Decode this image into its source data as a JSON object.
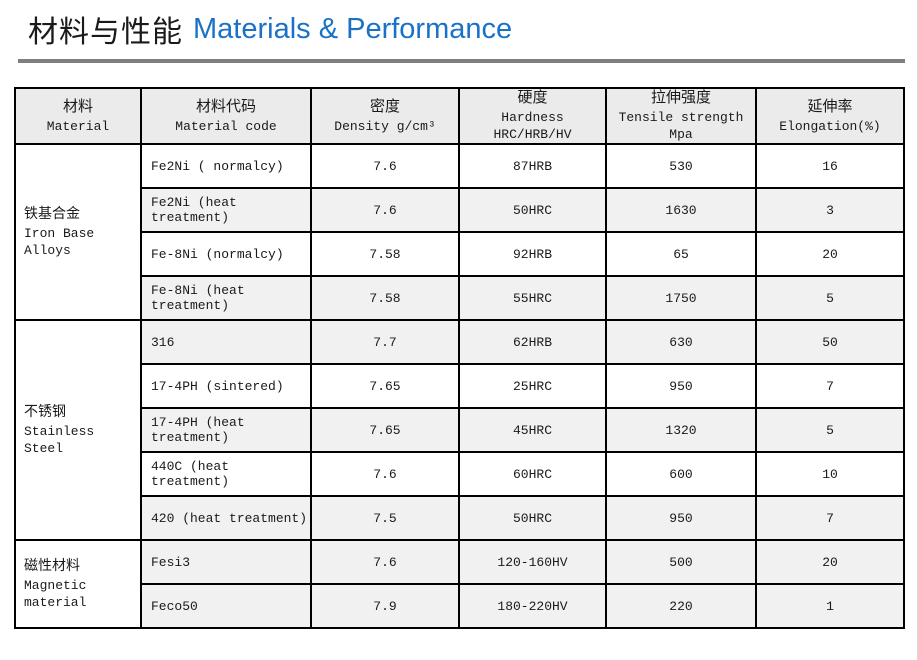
{
  "title": {
    "zh": "材料与性能",
    "en": "Materials & Performance"
  },
  "colors": {
    "title_en_blue": "#1a72c8",
    "divider_gray": "#7f7f7f",
    "header_bg": "#ebebeb",
    "shaded_row_bg": "#f1f1f1",
    "border_black": "#000000"
  },
  "table": {
    "headers": [
      {
        "zh": "材料",
        "en": "Material"
      },
      {
        "zh": "材料代码",
        "en": "Material code"
      },
      {
        "zh": "密度",
        "en": "Density g/cm³"
      },
      {
        "zh": "硬度",
        "en": "Hardness HRC/HRB/HV"
      },
      {
        "zh": "拉伸强度",
        "en": "Tensile strength Mpa"
      },
      {
        "zh": "延伸率",
        "en": "Elongation(%)"
      }
    ],
    "groups": [
      {
        "zh": "铁基合金",
        "en": "Iron Base Alloys",
        "rowspan": 4
      },
      {
        "zh": "不锈钢",
        "en": "Stainless Steel",
        "rowspan": 5
      },
      {
        "zh": "磁性材料",
        "en": "Magnetic material",
        "rowspan": 2
      }
    ],
    "rows": [
      {
        "code": "Fe2Ni ( normalcy)",
        "density": "7.6",
        "hardness": "87HRB",
        "tensile": "530",
        "elongation": "16"
      },
      {
        "code": "Fe2Ni (heat treatment)",
        "density": "7.6",
        "hardness": "50HRC",
        "tensile": "1630",
        "elongation": "3"
      },
      {
        "code": "Fe-8Ni (normalcy)",
        "density": "7.58",
        "hardness": "92HRB",
        "tensile": "65",
        "elongation": "20"
      },
      {
        "code": "Fe-8Ni (heat treatment)",
        "density": "7.58",
        "hardness": "55HRC",
        "tensile": "1750",
        "elongation": "5"
      },
      {
        "code": "316",
        "density": "7.7",
        "hardness": "62HRB",
        "tensile": "630",
        "elongation": "50"
      },
      {
        "code": "17-4PH (sintered)",
        "density": "7.65",
        "hardness": "25HRC",
        "tensile": "950",
        "elongation": "7"
      },
      {
        "code": "17-4PH (heat treatment)",
        "density": "7.65",
        "hardness": "45HRC",
        "tensile": "1320",
        "elongation": "5"
      },
      {
        "code": "440C (heat treatment)",
        "density": "7.6",
        "hardness": "60HRC",
        "tensile": "600",
        "elongation": "10"
      },
      {
        "code": "420 (heat treatment)",
        "density": "7.5",
        "hardness": "50HRC",
        "tensile": "950",
        "elongation": "7"
      },
      {
        "code": "Fesi3",
        "density": "7.6",
        "hardness": "120-160HV",
        "tensile": "500",
        "elongation": "20"
      },
      {
        "code": "Feco50",
        "density": "7.9",
        "hardness": "180-220HV",
        "tensile": "220",
        "elongation": "1"
      }
    ]
  }
}
